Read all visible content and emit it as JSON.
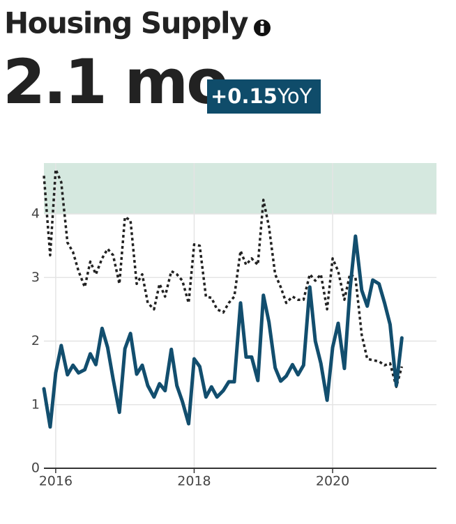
{
  "header": {
    "title": "Housing Supply",
    "value": "2.1 mo",
    "badge_change": "+0.15",
    "badge_unit": "YoY"
  },
  "chart_data": {
    "type": "line",
    "x": [
      2015.83,
      2015.92,
      2016.0,
      2016.08,
      2016.17,
      2016.25,
      2016.33,
      2016.42,
      2016.5,
      2016.58,
      2016.67,
      2016.75,
      2016.83,
      2016.92,
      2017.0,
      2017.08,
      2017.17,
      2017.25,
      2017.33,
      2017.42,
      2017.5,
      2017.58,
      2017.67,
      2017.75,
      2017.83,
      2017.92,
      2018.0,
      2018.08,
      2018.17,
      2018.25,
      2018.33,
      2018.42,
      2018.5,
      2018.58,
      2018.67,
      2018.75,
      2018.83,
      2018.92,
      2019.0,
      2019.08,
      2019.17,
      2019.25,
      2019.33,
      2019.42,
      2019.5,
      2019.58,
      2019.67,
      2019.75,
      2019.83,
      2019.92,
      2020.0,
      2020.08,
      2020.17,
      2020.25,
      2020.33,
      2020.42,
      2020.5,
      2020.58,
      2020.67,
      2020.75,
      2020.83,
      2020.92,
      2021.0
    ],
    "series": [
      {
        "color": "#222222",
        "dashed": true,
        "values": [
          4.6,
          3.35,
          4.7,
          4.5,
          3.55,
          3.4,
          3.1,
          2.85,
          3.25,
          3.05,
          3.3,
          3.45,
          3.35,
          2.9,
          3.95,
          3.9,
          2.9,
          3.05,
          2.6,
          2.5,
          2.9,
          2.7,
          3.1,
          3.05,
          2.95,
          2.6,
          3.52,
          3.5,
          2.7,
          2.68,
          2.5,
          2.45,
          2.6,
          2.7,
          3.42,
          3.2,
          3.3,
          3.2,
          4.22,
          3.8,
          3.05,
          2.85,
          2.6,
          2.7,
          2.65,
          2.65,
          3.05,
          2.95,
          3.05,
          2.5,
          3.3,
          3.1,
          2.65,
          3.05,
          3.0,
          2.1,
          1.72,
          1.7,
          1.68,
          1.62,
          1.65,
          1.28,
          1.6
        ]
      },
      {
        "color": "#124e6e",
        "dashed": false,
        "values": [
          1.25,
          0.65,
          1.5,
          1.93,
          1.47,
          1.62,
          1.5,
          1.55,
          1.8,
          1.63,
          2.2,
          1.9,
          1.4,
          0.88,
          1.88,
          2.12,
          1.48,
          1.62,
          1.3,
          1.12,
          1.33,
          1.22,
          1.87,
          1.3,
          1.05,
          0.7,
          1.72,
          1.6,
          1.12,
          1.28,
          1.12,
          1.22,
          1.36,
          1.36,
          2.6,
          1.75,
          1.75,
          1.38,
          2.72,
          2.3,
          1.58,
          1.37,
          1.45,
          1.63,
          1.47,
          1.62,
          2.85,
          2.0,
          1.65,
          1.07,
          1.9,
          2.28,
          1.57,
          2.8,
          3.65,
          2.8,
          2.55,
          2.96,
          2.9,
          2.6,
          2.26,
          1.3,
          2.05
        ]
      }
    ],
    "band": {
      "from": 4,
      "to": 4.8,
      "color": "#d5e8df"
    },
    "xlim": [
      2015.83,
      2021.5
    ],
    "xticks": [
      2016,
      2018,
      2020
    ],
    "ylim": [
      0,
      4.8
    ],
    "yticks": [
      0,
      1,
      2,
      3,
      4
    ],
    "grid": true
  }
}
